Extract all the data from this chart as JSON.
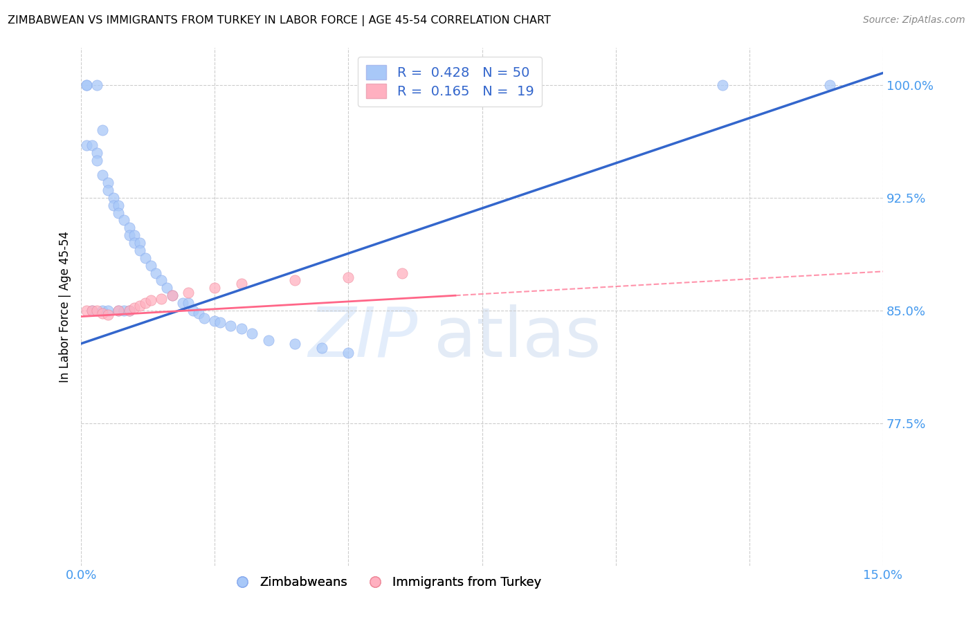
{
  "title": "ZIMBABWEAN VS IMMIGRANTS FROM TURKEY IN LABOR FORCE | AGE 45-54 CORRELATION CHART",
  "source": "Source: ZipAtlas.com",
  "ylabel": "In Labor Force | Age 45-54",
  "xlim": [
    0.0,
    0.15
  ],
  "ylim": [
    0.68,
    1.025
  ],
  "yticks": [
    0.775,
    0.85,
    0.925,
    1.0
  ],
  "ytick_labels": [
    "77.5%",
    "85.0%",
    "92.5%",
    "100.0%"
  ],
  "xticks": [
    0.0,
    0.025,
    0.05,
    0.075,
    0.1,
    0.125,
    0.15
  ],
  "xtick_labels": [
    "0.0%",
    "",
    "",
    "",
    "",
    "",
    "15.0%"
  ],
  "legend_R1": "R =  0.428",
  "legend_N1": "N = 50",
  "legend_R2": "R =  0.165",
  "legend_N2": "N =  19",
  "color_blue": "#a8c8f8",
  "color_pink": "#ffb0c0",
  "color_line_blue": "#3366cc",
  "color_line_pink": "#ff6688",
  "color_axis_labels": "#4499ee",
  "watermark_zip": "ZIP",
  "watermark_atlas": "atlas",
  "zim_x": [
    0.001,
    0.001,
    0.003,
    0.004,
    0.001,
    0.002,
    0.003,
    0.003,
    0.004,
    0.005,
    0.005,
    0.006,
    0.006,
    0.007,
    0.007,
    0.008,
    0.009,
    0.009,
    0.01,
    0.01,
    0.011,
    0.011,
    0.012,
    0.013,
    0.014,
    0.015,
    0.016,
    0.017,
    0.019,
    0.02,
    0.021,
    0.022,
    0.023,
    0.025,
    0.026,
    0.028,
    0.03,
    0.032,
    0.035,
    0.04,
    0.045,
    0.05,
    0.002,
    0.004,
    0.005,
    0.007,
    0.008,
    0.009,
    0.12,
    0.14
  ],
  "zim_y": [
    1.0,
    1.0,
    1.0,
    0.97,
    0.96,
    0.96,
    0.955,
    0.95,
    0.94,
    0.935,
    0.93,
    0.925,
    0.92,
    0.92,
    0.915,
    0.91,
    0.905,
    0.9,
    0.9,
    0.895,
    0.895,
    0.89,
    0.885,
    0.88,
    0.875,
    0.87,
    0.865,
    0.86,
    0.855,
    0.855,
    0.85,
    0.848,
    0.845,
    0.843,
    0.842,
    0.84,
    0.838,
    0.835,
    0.83,
    0.828,
    0.825,
    0.822,
    0.85,
    0.85,
    0.85,
    0.85,
    0.85,
    0.85,
    1.0,
    1.0
  ],
  "tur_x": [
    0.001,
    0.002,
    0.003,
    0.004,
    0.005,
    0.007,
    0.009,
    0.01,
    0.011,
    0.012,
    0.013,
    0.015,
    0.017,
    0.02,
    0.025,
    0.03,
    0.04,
    0.05,
    0.06
  ],
  "tur_y": [
    0.85,
    0.85,
    0.85,
    0.848,
    0.847,
    0.85,
    0.85,
    0.852,
    0.853,
    0.855,
    0.857,
    0.858,
    0.86,
    0.862,
    0.865,
    0.868,
    0.87,
    0.872,
    0.875
  ],
  "blue_line_x": [
    0.0,
    0.15
  ],
  "blue_line_y": [
    0.828,
    1.008
  ],
  "pink_line_x": [
    0.0,
    0.15
  ],
  "pink_line_y": [
    0.846,
    0.875
  ]
}
